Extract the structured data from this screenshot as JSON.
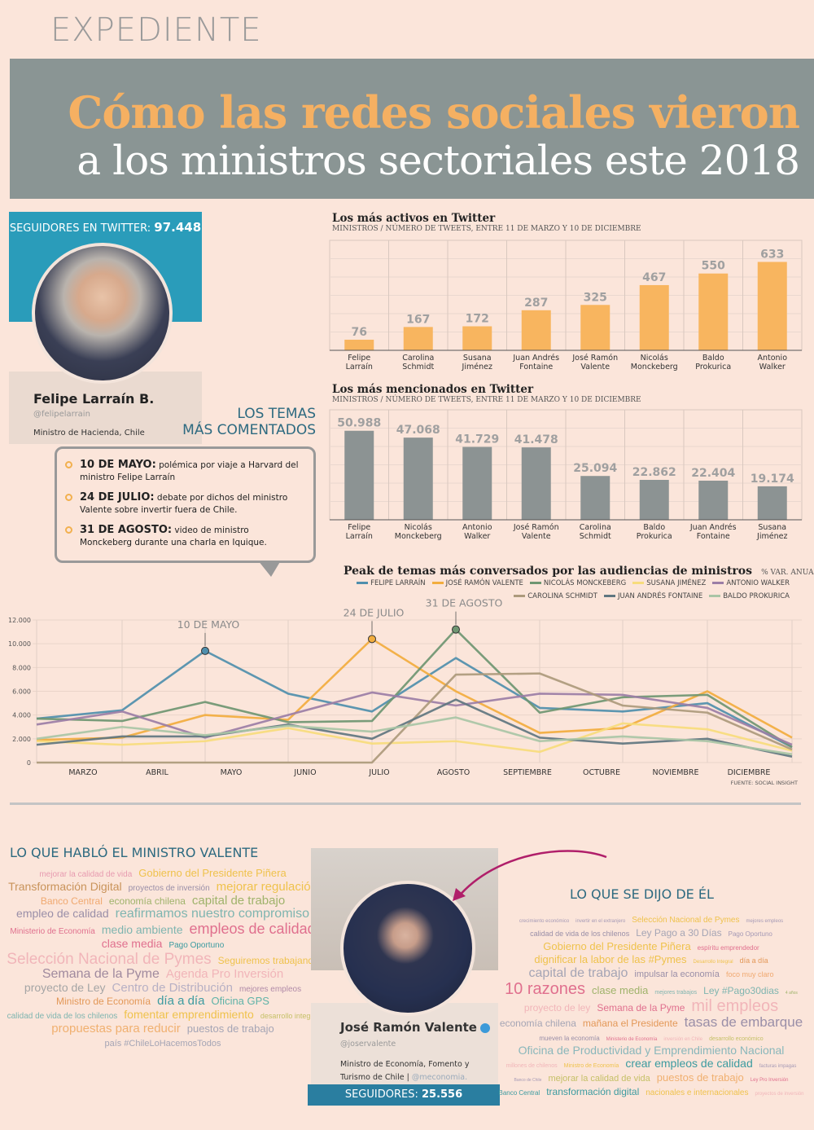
{
  "header": {
    "kicker": "EXPEDIENTE",
    "title_line1": "Cómo las redes sociales vieron",
    "title_line2": "a los ministros sectoriales este 2018"
  },
  "profile1": {
    "followers_label": "SEGUIDORES EN TWITTER:",
    "followers": "97.448",
    "name": "Felipe Larraín B.",
    "handle": "@felipelarrain",
    "role": "Ministro de Hacienda, Chile"
  },
  "temas": {
    "title_line1": "LOS TEMAS",
    "title_line2": "MÁS COMENTADOS",
    "events": [
      {
        "date": "10 DE MAYO:",
        "text": "polémica por viaje a Harvard del ministro Felipe Larraín"
      },
      {
        "date": "24 DE JULIO:",
        "text": "debate por dichos del ministro Valente sobre invertir fuera de Chile."
      },
      {
        "date": "31 DE AGOSTO:",
        "text": "video de ministro Monckeberg durante una charla en Iquique."
      }
    ]
  },
  "chart_data": [
    {
      "type": "bar",
      "title": "Los más activos en Twitter",
      "subtitle": "MINISTROS / NÚMERO DE TWEETS, ENTRE 11 DE MARZO Y 10 DE DICIEMBRE",
      "categories": [
        "Felipe Larraín",
        "Carolina Schmidt",
        "Susana Jiménez",
        "Juan Andrés Fontaine",
        "José Ramón Valente",
        "Nicolás Monckeberg",
        "Baldo Prokurica",
        "Antonio Walker"
      ],
      "category_lines": [
        [
          "Felipe",
          "Larraín"
        ],
        [
          "Carolina",
          "Schmidt"
        ],
        [
          "Susana",
          "Jiménez"
        ],
        [
          "Juan Andrés",
          "Fontaine"
        ],
        [
          "José Ramón",
          "Valente"
        ],
        [
          "Nicolás",
          "Monckeberg"
        ],
        [
          "Baldo",
          "Prokurica"
        ],
        [
          "Antonio",
          "Walker"
        ]
      ],
      "values": [
        76,
        167,
        172,
        287,
        325,
        467,
        550,
        633
      ],
      "value_labels": [
        "76",
        "167",
        "172",
        "287",
        "325",
        "467",
        "550",
        "633"
      ],
      "color": "#f8b55f",
      "ylim": [
        0,
        700
      ]
    },
    {
      "type": "bar",
      "title": "Los más mencionados en Twitter",
      "subtitle": "MINISTROS / NÚMERO DE TWEETS, ENTRE 11 DE MARZO Y 10 DE DICIEMBRE",
      "categories": [
        "Felipe Larraín",
        "Nicolás Monckeberg",
        "Antonio Walker",
        "José Ramón Valente",
        "Carolina Schmidt",
        "Baldo Prokurica",
        "Juan Andrés Fontaine",
        "Susana Jiménez"
      ],
      "category_lines": [
        [
          "Felipe",
          "Larraín"
        ],
        [
          "Nicolás",
          "Monckeberg"
        ],
        [
          "Antonio",
          "Walker"
        ],
        [
          "José Ramón",
          "Valente"
        ],
        [
          "Carolina",
          "Schmidt"
        ],
        [
          "Baldo",
          "Prokurica"
        ],
        [
          "Juan Andrés",
          "Fontaine"
        ],
        [
          "Susana",
          "Jiménez"
        ]
      ],
      "values": [
        50988,
        47068,
        41729,
        41478,
        25094,
        22862,
        22404,
        19174
      ],
      "value_labels": [
        "50.988",
        "47.068",
        "41.729",
        "41.478",
        "25.094",
        "22.862",
        "22.404",
        "19.174"
      ],
      "color": "#8c9393",
      "ylim": [
        0,
        56000
      ]
    },
    {
      "type": "line",
      "title": "Peak de temas más conversados por las audiencias de ministros",
      "unit": "% VAR. ANUAL",
      "categories": [
        "MARZO",
        "ABRIL",
        "MAYO",
        "JUNIO",
        "JULIO",
        "AGOSTO",
        "SEPTIEMBRE",
        "OCTUBRE",
        "NOVIEMBRE",
        "DICIEMBRE"
      ],
      "ylim": [
        0,
        12000
      ],
      "yticks": [
        "0",
        "2.000",
        "4.000",
        "6.000",
        "8.000",
        "10.000",
        "12.000"
      ],
      "grid": true,
      "legend": "top",
      "source": "FUENTE: SOCIAL INSIGHT",
      "series": [
        {
          "name": "FELIPE LARRAÍN",
          "color": "#4f8fad",
          "values": [
            3700,
            4400,
            9400,
            5800,
            4300,
            8800,
            4600,
            4300,
            5000,
            1300
          ]
        },
        {
          "name": "JOSÉ RAMÓN VALENTE",
          "color": "#f2ad3e",
          "values": [
            1900,
            2100,
            4000,
            3600,
            10400,
            6000,
            2500,
            2900,
            6000,
            2100
          ]
        },
        {
          "name": "NICOLÁS MONCKEBERG",
          "color": "#6f9672",
          "values": [
            3700,
            3500,
            5100,
            3400,
            3500,
            11200,
            4200,
            5500,
            5700,
            1300
          ]
        },
        {
          "name": "SUSANA JIMÉNEZ",
          "color": "#f7dc7c",
          "values": [
            1800,
            1500,
            1800,
            2900,
            1600,
            1800,
            900,
            3300,
            2800,
            1000
          ]
        },
        {
          "name": "ANTONIO WALKER",
          "color": "#9b7ea6",
          "values": [
            3200,
            4300,
            2100,
            4000,
            5900,
            4800,
            5800,
            5700,
            4600,
            1500
          ]
        },
        {
          "name": "CAROLINA SCHMIDT",
          "color": "#ad9a7c",
          "values": [
            0,
            0,
            0,
            0,
            0,
            7400,
            7500,
            4800,
            4200,
            1100
          ]
        },
        {
          "name": "JUAN ANDRÉS FONTAINE",
          "color": "#5f7680",
          "values": [
            1500,
            2200,
            2200,
            3200,
            2000,
            5300,
            2100,
            1600,
            2000,
            500
          ]
        },
        {
          "name": "BALDO PROKURICA",
          "color": "#a9c5a6",
          "values": [
            2000,
            3000,
            2300,
            3100,
            2600,
            3800,
            1800,
            2200,
            1800,
            700
          ]
        }
      ],
      "annotations": [
        {
          "label": "10 DE MAYO",
          "x": "MAYO",
          "series": "FELIPE LARRAÍN",
          "value": 9400
        },
        {
          "label": "24 DE JULIO",
          "x": "JULIO",
          "series": "JOSÉ RAMÓN VALENTE",
          "value": 10400
        },
        {
          "label": "31 DE AGOSTO",
          "x": "AGOSTO",
          "series": "NICOLÁS MONCKEBERG",
          "value": 11200
        }
      ]
    }
  ],
  "valente": {
    "said_title": "LO QUE HABLÓ EL MINISTRO VALENTE",
    "about_title": "LO QUE SE DIJO DE ÉL",
    "name": "José Ramón Valente",
    "handle": "@joservalente",
    "role": "Ministro de Economía, Fomento y Turismo de Chile |",
    "role_link": "@meconomia.",
    "followers_label": "SEGUIDORES:",
    "followers": "25.556"
  },
  "cloud_said": [
    {
      "t": "mejorar la calidad de vida",
      "c": "#e79bb0",
      "s": 10
    },
    {
      "t": "Gobierno del Presidente Piñera",
      "c": "#efc24c",
      "s": 13
    },
    {
      "t": "Transformación Digital",
      "c": "#c9935a",
      "s": 14
    },
    {
      "t": "proyectos de inversión",
      "c": "#9a8fa8",
      "s": 10
    },
    {
      "t": "mejorar regulación",
      "c": "#efc24c",
      "s": 15
    },
    {
      "t": "Banco Central",
      "c": "#f0a970",
      "s": 12
    },
    {
      "t": "economía chilena",
      "c": "#9fb36b",
      "s": 12
    },
    {
      "t": "capital de trabajo",
      "c": "#9fb36b",
      "s": 15
    },
    {
      "t": "empleo de calidad",
      "c": "#9a8fa8",
      "s": 14
    },
    {
      "t": "reafirmamos nuestro compromiso",
      "c": "#7fb5b0",
      "s": 16
    },
    {
      "t": "Ministerio de Economía",
      "c": "#e0708e",
      "s": 10
    },
    {
      "t": "medio ambiente",
      "c": "#7fb5b0",
      "s": 14
    },
    {
      "t": "empleos de calidad",
      "c": "#e0708e",
      "s": 18
    },
    {
      "t": "clase media",
      "c": "#e0708e",
      "s": 14
    },
    {
      "t": "Pago Oportuno",
      "c": "#3c9ba0",
      "s": 10
    },
    {
      "t": "Selección Nacional de Pymes",
      "c": "#f1b5b9",
      "s": 19
    },
    {
      "t": "Seguiremos trabajando",
      "c": "#efc24c",
      "s": 12
    },
    {
      "t": "Semana de la Pyme",
      "c": "#a08a9e",
      "s": 16
    },
    {
      "t": "Agenda Pro Inversión",
      "c": "#f1b5b9",
      "s": 15
    },
    {
      "t": "proyecto de Ley",
      "c": "#a5a5a5",
      "s": 14
    },
    {
      "t": "Centro de Distribución",
      "c": "#b7b0c4",
      "s": 15
    },
    {
      "t": "mejores empleos",
      "c": "#b08aa8",
      "s": 10
    },
    {
      "t": "Ministro de Economía",
      "c": "#e39858",
      "s": 12
    },
    {
      "t": "día a día",
      "c": "#3c9ba0",
      "s": 15
    },
    {
      "t": "Oficina GPS",
      "c": "#5fb3a8",
      "s": 13
    },
    {
      "t": "calidad de vida de los chilenos",
      "c": "#7fb5b0",
      "s": 10
    },
    {
      "t": "fomentar emprendimiento",
      "c": "#efc24c",
      "s": 14
    },
    {
      "t": "desarrollo integral",
      "c": "#c5c067",
      "s": 9
    },
    {
      "t": "propuestas para reducir",
      "c": "#f0b070",
      "s": 15
    },
    {
      "t": "puestos de trabajo",
      "c": "#a5a5b5",
      "s": 13
    },
    {
      "t": "país #ChileLoHacemosTodos",
      "c": "#a5a5b5",
      "s": 11
    }
  ],
  "cloud_about": [
    {
      "t": "crecimiento económico",
      "c": "#a599b5",
      "s": 6
    },
    {
      "t": "invertir en el extranjero",
      "c": "#a599b5",
      "s": 6
    },
    {
      "t": "Selección Nacional de Pymes",
      "c": "#efc24c",
      "s": 10
    },
    {
      "t": "mejores empleos",
      "c": "#a599b5",
      "s": 6
    },
    {
      "t": "calidad de vida de los chilenos",
      "c": "#9a8fa8",
      "s": 9
    },
    {
      "t": "Ley Pago a 30 Días",
      "c": "#a5a5b5",
      "s": 12
    },
    {
      "t": "Pago Oportuno",
      "c": "#a599b5",
      "s": 8
    },
    {
      "t": "Gobierno del Presidente Piñera",
      "c": "#efc24c",
      "s": 13
    },
    {
      "t": "espíritu emprendedor",
      "c": "#e0708e",
      "s": 8
    },
    {
      "t": "dignificar la labor de las #Pymes",
      "c": "#efc24c",
      "s": 13
    },
    {
      "t": "Desarrollo Integral",
      "c": "#efc24c",
      "s": 6
    },
    {
      "t": "día a día",
      "c": "#e39858",
      "s": 9
    },
    {
      "t": "capital de trabajo",
      "c": "#a5a5b5",
      "s": 16
    },
    {
      "t": "impulsar la economía",
      "c": "#9a8fa8",
      "s": 11
    },
    {
      "t": "foco muy claro",
      "c": "#f0a970",
      "s": 9
    },
    {
      "t": "10 razones",
      "c": "#e0708e",
      "s": 20
    },
    {
      "t": "clase media",
      "c": "#9fb36b",
      "s": 13
    },
    {
      "t": "mejores trabajos",
      "c": "#7fb5b0",
      "s": 7
    },
    {
      "t": "Ley #Pago30dias",
      "c": "#7fb5b0",
      "s": 12
    },
    {
      "t": "4 años",
      "c": "#9fb36b",
      "s": 5
    },
    {
      "t": "proyecto de ley",
      "c": "#f1b5b9",
      "s": 12
    },
    {
      "t": "Semana de la Pyme",
      "c": "#e0708e",
      "s": 12
    },
    {
      "t": "mil empleos",
      "c": "#f1b5b9",
      "s": 20
    },
    {
      "t": "economía chilena",
      "c": "#a5a5b5",
      "s": 12
    },
    {
      "t": "mañana el Presidente",
      "c": "#e39858",
      "s": 12
    },
    {
      "t": "tasas de embarque",
      "c": "#9a8fa8",
      "s": 17
    },
    {
      "t": "mueven la economía",
      "c": "#9a8fa8",
      "s": 8
    },
    {
      "t": "Ministerio de Economía",
      "c": "#e0708e",
      "s": 6
    },
    {
      "t": "inversión en Chile",
      "c": "#f1b5b9",
      "s": 6
    },
    {
      "t": "desarrollo económico",
      "c": "#c5c067",
      "s": 7
    },
    {
      "t": "Oficina de Productividad y Emprendimiento Nacional",
      "c": "#8ab7bb",
      "s": 14
    },
    {
      "t": "millones de chilenos",
      "c": "#f1b5b9",
      "s": 7
    },
    {
      "t": "Ministro de Economía",
      "c": "#efc24c",
      "s": 7
    },
    {
      "t": "crear empleos de calidad",
      "c": "#3c9ba0",
      "s": 14
    },
    {
      "t": "facturas impagas",
      "c": "#a599b5",
      "s": 6
    },
    {
      "t": "Banco de Chile",
      "c": "#a599b5",
      "s": 5
    },
    {
      "t": "mejorar la calidad de vida",
      "c": "#c5c067",
      "s": 11
    },
    {
      "t": "puestos de trabajo",
      "c": "#f0b070",
      "s": 13
    },
    {
      "t": "Ley Pro Inversión",
      "c": "#e0708e",
      "s": 6
    },
    {
      "t": "Banco Central",
      "c": "#3c9ba0",
      "s": 8
    },
    {
      "t": "transformación digital",
      "c": "#3c9ba0",
      "s": 12
    },
    {
      "t": "nacionales e internacionales",
      "c": "#efc24c",
      "s": 10
    },
    {
      "t": "proyectos de inversión",
      "c": "#f1b5b9",
      "s": 6
    }
  ]
}
